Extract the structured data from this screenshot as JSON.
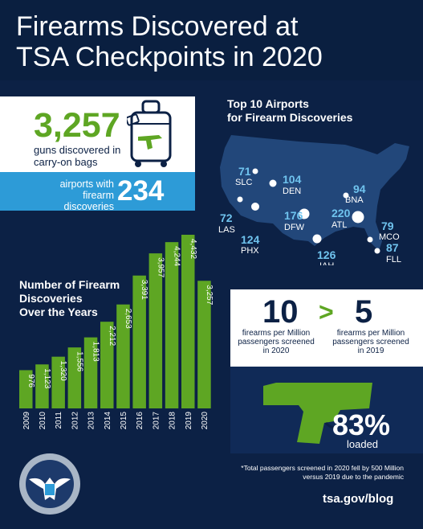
{
  "header": {
    "title_line1": "Firearms Discovered at",
    "title_line2": "TSA Checkpoints in 2020"
  },
  "summary": {
    "guns_count": "3,257",
    "guns_caption": "guns discovered in carry-on bags",
    "airports_caption": "airports with firearm discoveries",
    "airports_count": "234"
  },
  "map": {
    "title_line1": "Top 10 Airports",
    "title_line2": "for Firearm Discoveries",
    "airports": [
      {
        "code": "SLC",
        "count": "71"
      },
      {
        "code": "DEN",
        "count": "104"
      },
      {
        "code": "LAS",
        "count": "72"
      },
      {
        "code": "PHX",
        "count": "124"
      },
      {
        "code": "DFW",
        "count": "176"
      },
      {
        "code": "IAH",
        "count": "126"
      },
      {
        "code": "ATL",
        "count": "220"
      },
      {
        "code": "BNA",
        "count": "94"
      },
      {
        "code": "MCO",
        "count": "79"
      },
      {
        "code": "FLL",
        "count": "87"
      }
    ]
  },
  "chart_title_line1": "Number of Firearm",
  "chart_title_line2": "Discoveries",
  "chart_title_line3": "Over the Years",
  "chart_data": {
    "type": "bar",
    "title": "Number of Firearm Discoveries Over the Years",
    "categories": [
      "2009",
      "2010",
      "2011",
      "2012",
      "2013",
      "2014",
      "2015",
      "2016",
      "2017",
      "2018",
      "2019",
      "2020"
    ],
    "values": [
      976,
      1123,
      1320,
      1556,
      1813,
      2212,
      2653,
      3391,
      3957,
      4244,
      4432,
      3257
    ],
    "value_labels": [
      "976",
      "1,123",
      "1,320",
      "1,556",
      "1,813",
      "2,212",
      "2,653",
      "3,391",
      "3,957",
      "4,244",
      "4,432",
      "3,257"
    ],
    "xlabel": "",
    "ylabel": "",
    "ylim": [
      0,
      4432
    ],
    "grid": false,
    "colors": {
      "bars": "#5ea623",
      "last_bar": "#5ea623"
    }
  },
  "comparison": {
    "rate_2020": "10",
    "gt": ">",
    "rate_2019": "5",
    "caption_2020": "firearms per Million passengers screened in 2020",
    "caption_2019": "firearms per Million passengers screened in 2019"
  },
  "loaded": {
    "percent": "83%",
    "label": "loaded"
  },
  "footnote": "*Total passengers screened in 2020 fell by 500 Million versus 2019 due to the pandemic",
  "footer": {
    "url": "tsa.gov/blog"
  },
  "colors": {
    "navy": "#0c2145",
    "green": "#5ea623",
    "blue": "#2d9bd7",
    "white": "#ffffff"
  }
}
